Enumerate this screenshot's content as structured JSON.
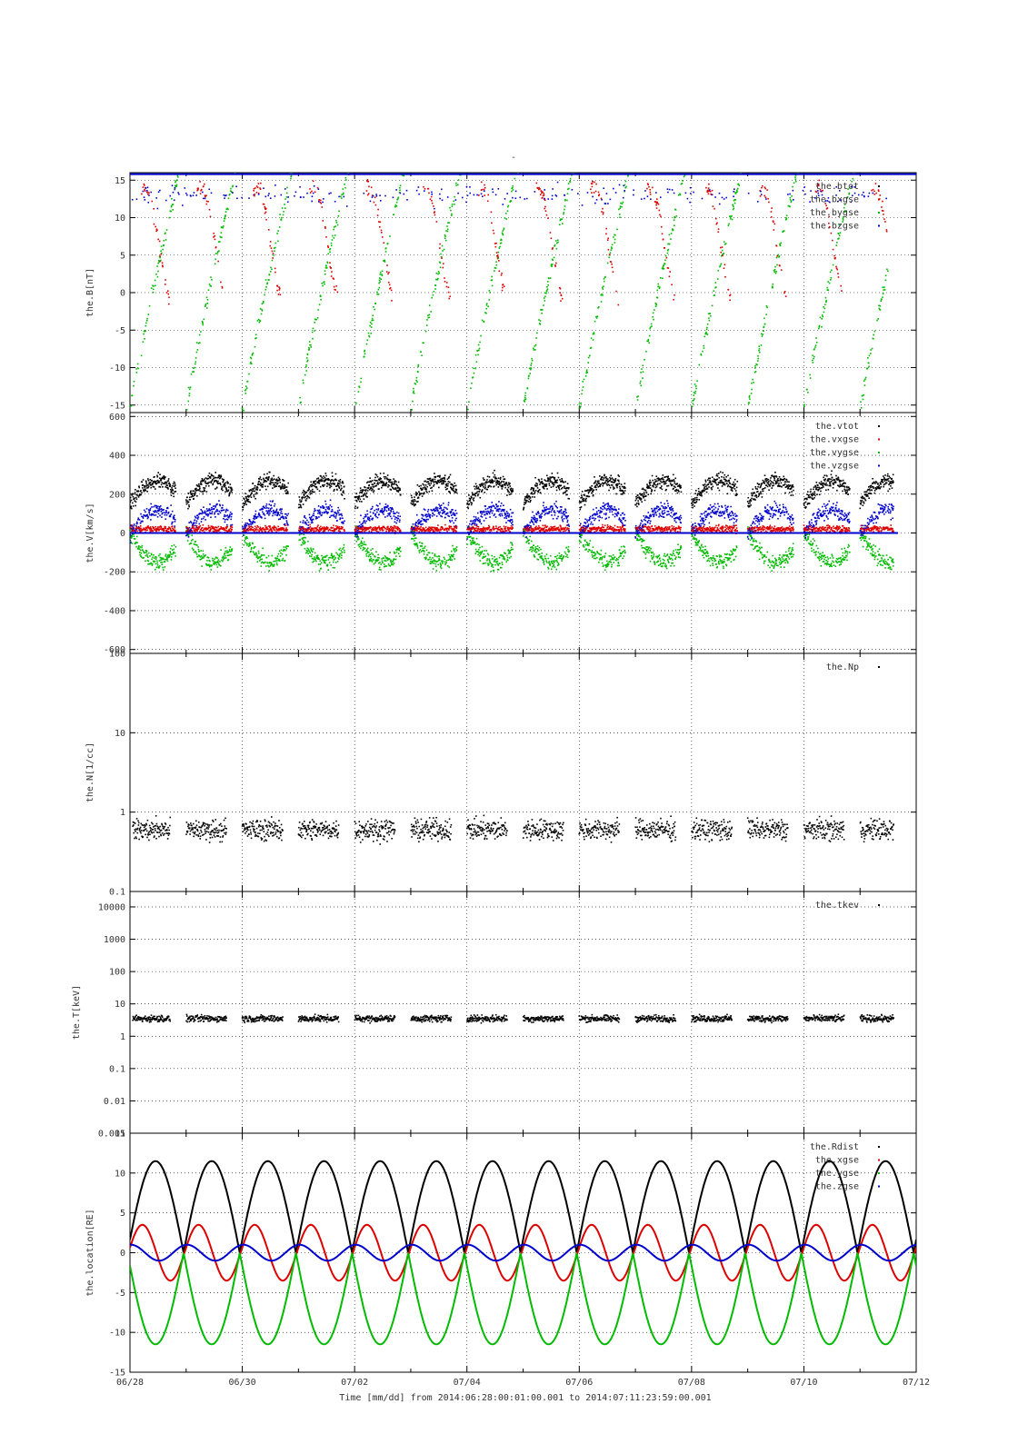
{
  "figure": {
    "title": "-",
    "xlabel": "Time [mm/dd]  from 2014:06:28:00:01:00.001  to  2014:07:11:23:59:00.001",
    "x_ticks": [
      "06/28",
      "06/30",
      "07/02",
      "07/04",
      "07/06",
      "07/08",
      "07/10",
      "07/12"
    ]
  },
  "chart_data": [
    {
      "type": "scatter",
      "ylabel": "the.B[nT]",
      "x_range_days": [
        0,
        14
      ],
      "ylim": [
        -16,
        16
      ],
      "y_ticks": [
        "15",
        "10",
        "5",
        "0",
        "-5",
        "-10",
        "-15"
      ],
      "legend": [
        "the.btot",
        "the.bxgse",
        "the.bygse",
        "the.bzgse"
      ],
      "colors": [
        "#000000",
        "#dd0000",
        "#00bb00",
        "#0000cc"
      ],
      "grid": true
    },
    {
      "type": "scatter",
      "ylabel": "the.V[km/s]",
      "x_range_days": [
        0,
        14
      ],
      "ylim": [
        -620,
        620
      ],
      "y_ticks": [
        "600",
        "400",
        "200",
        "0",
        "-200",
        "-400",
        "-600"
      ],
      "legend": [
        "the.vtot",
        "the.vxgse",
        "the.vygse",
        "the.vzgse"
      ],
      "colors": [
        "#000000",
        "#dd0000",
        "#00bb00",
        "#0000cc"
      ],
      "grid": true
    },
    {
      "type": "scatter",
      "ylabel": "the.N[1/cc]",
      "scale": "log",
      "x_range_days": [
        0,
        14
      ],
      "ylim": [
        0.1,
        100
      ],
      "y_ticks": [
        "100",
        "10",
        "1",
        "0.1"
      ],
      "legend": [
        "the.Np"
      ],
      "colors": [
        "#000000"
      ],
      "grid": true
    },
    {
      "type": "scatter",
      "ylabel": "the.T[keV]",
      "scale": "log",
      "x_range_days": [
        0,
        14
      ],
      "ylim": [
        0.001,
        30000
      ],
      "y_ticks": [
        "10000",
        "1000",
        "100",
        "10",
        "1",
        "0.1",
        "0.01",
        "0.001"
      ],
      "legend": [
        "the.tkev"
      ],
      "colors": [
        "#000000"
      ],
      "grid": true
    },
    {
      "type": "line",
      "ylabel": "the.location[RE]",
      "x_range_days": [
        0,
        14
      ],
      "ylim": [
        -15,
        15
      ],
      "y_ticks": [
        "15",
        "10",
        "5",
        "0",
        "-5",
        "-10",
        "-15"
      ],
      "legend": [
        "the.Rdist",
        "the.xgse",
        "the.ygse",
        "the.zgse"
      ],
      "colors": [
        "#000000",
        "#dd0000",
        "#00bb00",
        "#0000cc"
      ],
      "orbit": {
        "period_days": 1,
        "rdist_max": 11.5,
        "xgse_amp": 3.5,
        "ygse_min": -11.5,
        "zgse_amp": 1.0
      },
      "grid": true
    }
  ]
}
